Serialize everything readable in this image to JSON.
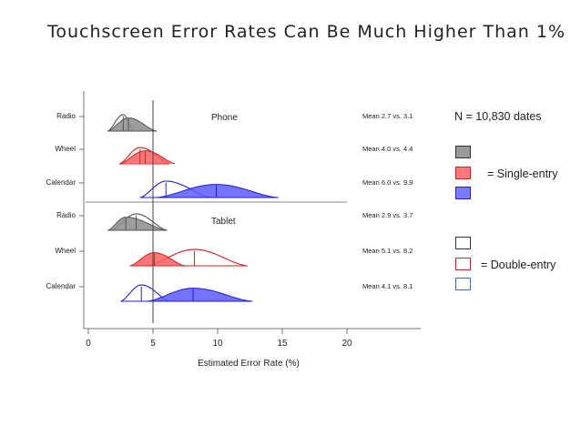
{
  "title": "Touchscreen Error Rates Can Be Much Higher Than 1%",
  "legend": {
    "n_label": "N = 10,830 dates",
    "single_label": "= Single-entry",
    "double_label": "=  Double-entry",
    "single_swatches": [
      {
        "fill": "#999999",
        "stroke": "#333333"
      },
      {
        "fill": "#ff7b7b",
        "stroke": "#cc2222"
      },
      {
        "fill": "#7b7bff",
        "stroke": "#2222cc"
      }
    ],
    "double_swatches": [
      {
        "fill": "#ffffff",
        "stroke": "#333333"
      },
      {
        "fill": "#ffffff",
        "stroke": "#cc2222"
      },
      {
        "fill": "#ffffff",
        "stroke": "#3b6fb0"
      }
    ]
  },
  "chart_data": {
    "type": "ridgeline",
    "xlabel": "Estimated Error Rate (%)",
    "xlim": [
      -1,
      25
    ],
    "xticks": [
      0,
      5,
      10,
      15,
      20
    ],
    "reference_line": 5,
    "panels": [
      {
        "name": "Phone",
        "rows": [
          {
            "label": "Radio",
            "color": "gray",
            "single_mean": 3.1,
            "double_mean": 2.7,
            "single_range": [
              1.5,
              5.3
            ],
            "double_range": [
              1.5,
              3.5
            ],
            "mean_label": "Mean 2.7 vs. 3.1"
          },
          {
            "label": "Wheel",
            "color": "red",
            "single_mean": 4.4,
            "double_mean": 4.0,
            "single_range": [
              2.4,
              6.8
            ],
            "double_range": [
              2.4,
              6.3
            ],
            "mean_label": "Mean 4.0 vs. 4.4"
          },
          {
            "label": "Calendar",
            "color": "blue",
            "single_mean": 9.9,
            "double_mean": 6.0,
            "single_range": [
              5.2,
              14.7
            ],
            "double_range": [
              4.0,
              9.5
            ],
            "mean_label": "Mean 6.0 vs. 9.9"
          }
        ]
      },
      {
        "name": "Tablet",
        "rows": [
          {
            "label": "Radio",
            "color": "gray",
            "single_mean": 2.9,
            "double_mean": 3.7,
            "single_range": [
              1.5,
              6.1
            ],
            "double_range": [
              1.8,
              6.1
            ],
            "mean_label": "Mean 2.9 vs. 3.7"
          },
          {
            "label": "Wheel",
            "color": "red",
            "single_mean": 5.1,
            "double_mean": 8.2,
            "single_range": [
              3.2,
              7.5
            ],
            "double_range": [
              4.5,
              12.3
            ],
            "mean_label": "Mean 5.1 vs. 8.2"
          },
          {
            "label": "Calendar",
            "color": "blue",
            "single_mean": 8.1,
            "double_mean": 4.1,
            "single_range": [
              4.5,
              12.7
            ],
            "double_range": [
              2.5,
              6.3
            ],
            "mean_label": "Mean 4.1 vs. 8.1"
          }
        ]
      }
    ]
  }
}
